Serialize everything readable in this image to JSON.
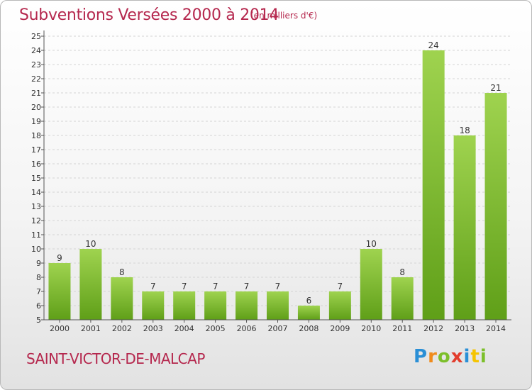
{
  "title": "Subventions Versées 2000 à 2014",
  "unit_note": "(en milliers d'€)",
  "commune": "SAINT-VICTOR-DE-MALCAP",
  "logo": {
    "letters": [
      "P",
      "r",
      "o",
      "x",
      "i",
      "t",
      "i"
    ]
  },
  "colors": {
    "title": "#b5284e",
    "bar_light": "#9fd34f",
    "bar_dark": "#5f9f18",
    "axis": "#555555",
    "grid": "#d4d4d4"
  },
  "chart_data": {
    "type": "bar",
    "categories": [
      "2000",
      "2001",
      "2002",
      "2003",
      "2004",
      "2005",
      "2006",
      "2007",
      "2008",
      "2009",
      "2010",
      "2011",
      "2012",
      "2013",
      "2014"
    ],
    "values": [
      9,
      10,
      8,
      7,
      7,
      7,
      7,
      7,
      6,
      7,
      10,
      8,
      24,
      18,
      21
    ],
    "data_labels": [
      "9",
      "10",
      "8",
      "7",
      "7",
      "7",
      "7",
      "7",
      "6",
      "7",
      "10",
      "8",
      "24",
      "18",
      "21"
    ],
    "ylim": [
      5,
      25
    ],
    "y_ticks": [
      "5",
      "6",
      "7",
      "8",
      "9",
      "10",
      "11",
      "12",
      "13",
      "14",
      "15",
      "16",
      "17",
      "18",
      "19",
      "20",
      "21",
      "22",
      "23",
      "24",
      "25"
    ],
    "grid": true,
    "xlabel": "",
    "ylabel": ""
  }
}
